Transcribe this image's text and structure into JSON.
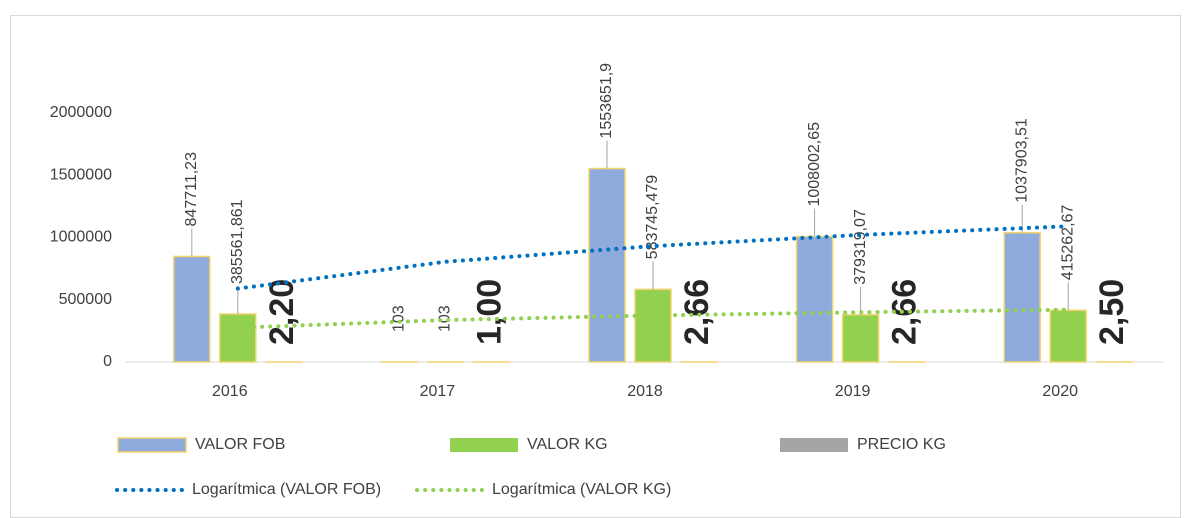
{
  "chart_data": {
    "type": "bar",
    "categories": [
      "2016",
      "2017",
      "2018",
      "2019",
      "2020"
    ],
    "series": [
      {
        "name": "VALOR FOB",
        "color": "#8faadc",
        "border": "#f2d46b",
        "values": [
          847711.23,
          103,
          1553651.9,
          1008002.65,
          1037903.51
        ],
        "value_labels": [
          "847711,23",
          "103",
          "1553651,9",
          "1008002,65",
          "1037903,51"
        ]
      },
      {
        "name": "VALOR KG",
        "color": "#92d050",
        "values": [
          385561.861,
          103,
          583745.479,
          379319.07,
          415262.67
        ],
        "value_labels": [
          "385561,861",
          "103",
          "583745,479",
          "379319,07",
          "415262,67"
        ]
      },
      {
        "name": "PRECIO KG",
        "color": "#a5a5a5",
        "values": [
          2.2,
          1,
          2.66,
          2.66,
          2.5
        ],
        "value_labels": [
          "2,20",
          "1,00",
          "2,66",
          "2,66",
          "2,50"
        ]
      },
      {
        "name": "Logarítmica (VALOR FOB)",
        "type": "line",
        "line_style": "dotted",
        "color": "#0070c0",
        "values": [
          590000,
          805000,
          931000,
          1021000,
          1090000
        ]
      },
      {
        "name": "Logarítmica (VALOR KG)",
        "type": "line",
        "line_style": "dotted",
        "color": "#92d050",
        "values": [
          275000,
          337000,
          374000,
          400000,
          420000
        ]
      }
    ],
    "ylim": [
      0,
      2000000
    ],
    "yticks": [
      0,
      500000,
      1000000,
      1500000,
      2000000
    ],
    "grid": false,
    "legend": "bottom"
  }
}
